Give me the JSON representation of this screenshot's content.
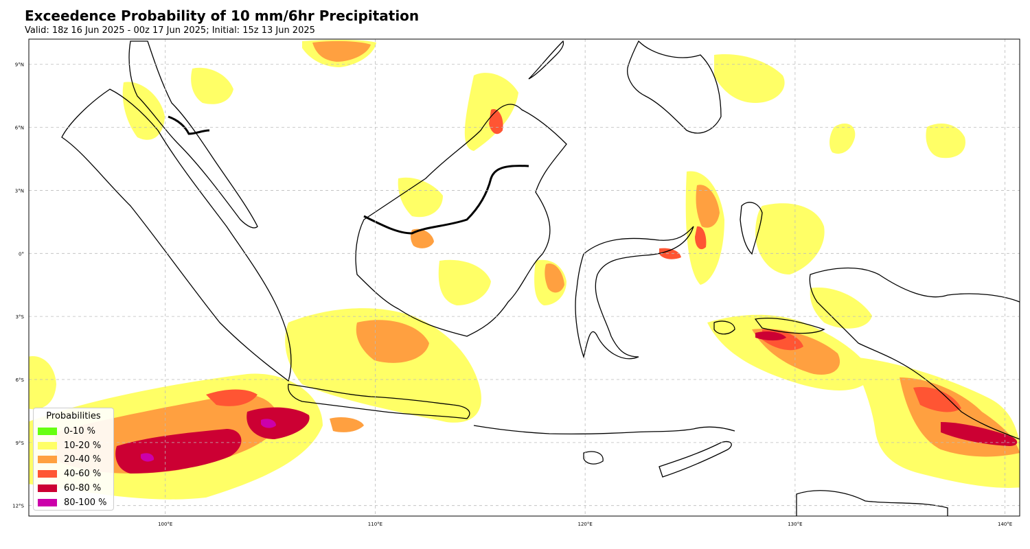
{
  "title": "Exceedence Probability of 10 mm/6hr Precipitation",
  "subtitle": "Valid: 18z 16 Jun 2025 - 00z 17 Jun 2025; Initial: 15z 13 Jun 2025",
  "map": {
    "extent": {
      "lon_min": 93.5,
      "lon_max": 140.7,
      "lat_min": -12.5,
      "lat_max": 10.2
    },
    "gridlines": true,
    "lon_ticks": [
      {
        "value": 100,
        "label": "100°E"
      },
      {
        "value": 110,
        "label": "110°E"
      },
      {
        "value": 120,
        "label": "120°E"
      },
      {
        "value": 130,
        "label": "130°E"
      },
      {
        "value": 140,
        "label": "140°E"
      }
    ],
    "lat_ticks": [
      {
        "value": 9,
        "label": "9°N"
      },
      {
        "value": 6,
        "label": "6°N"
      },
      {
        "value": 3,
        "label": "3°N"
      },
      {
        "value": 0,
        "label": "0°"
      },
      {
        "value": -3,
        "label": "3°S"
      },
      {
        "value": -6,
        "label": "6°S"
      },
      {
        "value": -9,
        "label": "9°S"
      },
      {
        "value": -12,
        "label": "12°S"
      }
    ]
  },
  "legend": {
    "title": "Probabilities",
    "placement": "lower-left",
    "items": [
      {
        "label": "0-10 %",
        "color": "#66ff11"
      },
      {
        "label": "10-20 %",
        "color": "#ffff66"
      },
      {
        "label": "20-40 %",
        "color": "#ffa040"
      },
      {
        "label": "40-60 %",
        "color": "#ff5533"
      },
      {
        "label": "60-80 %",
        "color": "#cc0033"
      },
      {
        "label": "80-100 %",
        "color": "#cc00aa"
      }
    ]
  }
}
